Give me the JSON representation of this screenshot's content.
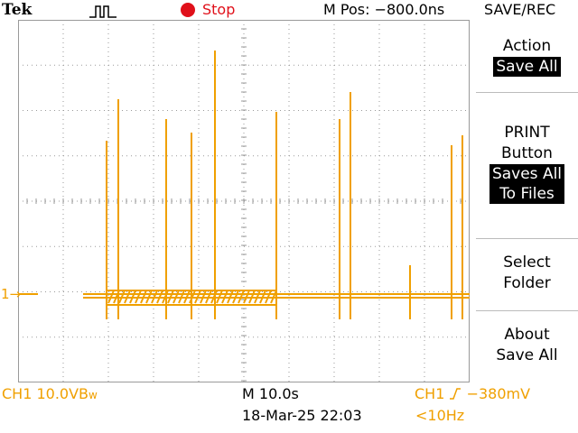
{
  "header": {
    "brand": "Tek",
    "acq_icon": "pulse-waveform-icon",
    "status": "Stop",
    "mpos": "M Pos: −800.0ns",
    "menu_title": "SAVE/REC"
  },
  "menu": {
    "items": [
      {
        "label": "Action",
        "value": "Save All"
      },
      {
        "label": "PRINT\nButton",
        "value": "Saves All\nTo Files"
      },
      {
        "label": "Select\nFolder"
      },
      {
        "label": "About\nSave All"
      }
    ]
  },
  "footer": {
    "ch1_scale": "CH1  10.0VB",
    "bw_mark": "w",
    "timebase": "M 10.0s",
    "datetime": "18-Mar-25 22:03",
    "trigger_ch": "CH1",
    "trigger_level": "−380mV",
    "trigger_freq": "<10Hz"
  },
  "markers": {
    "ch1_level": "1→"
  },
  "colors": {
    "trace": "#f0a000",
    "stop": "#e0101a",
    "grid": "#9a9a9a"
  }
}
